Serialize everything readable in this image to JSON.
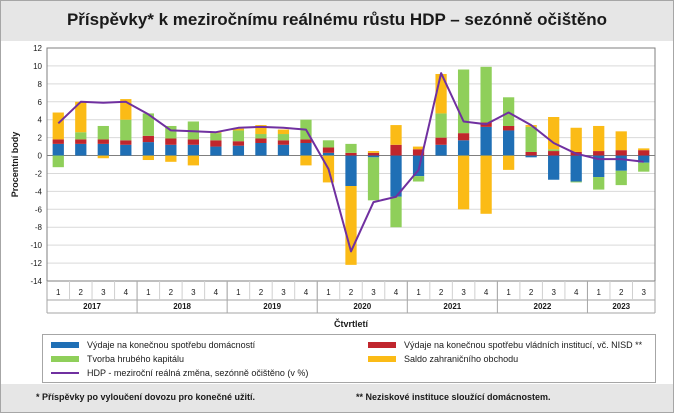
{
  "title": "Příspěvky* k meziročnímu reálnému růstu HDP – sezónně očištěno",
  "legend": {
    "items": [
      {
        "key": "households",
        "label": "Výdaje na konečnou spotřebu domácností",
        "color": "#1f6fb5"
      },
      {
        "key": "government",
        "label": "Výdaje na konečnou spotřebu vládních institucí, vč. NISD **",
        "color": "#c0262d"
      },
      {
        "key": "capital",
        "label": "Tvorba hrubého kapitálu",
        "color": "#8fcf5a"
      },
      {
        "key": "trade",
        "label": "Saldo zahraničního obchodu",
        "color": "#fbbb16"
      },
      {
        "key": "gdp",
        "label": "HDP - meziroční reálná změna, sezónně očištěno (v %)",
        "color": "#7030a0"
      }
    ]
  },
  "footnotes": {
    "left": "* Příspěvky po vyloučení dovozu pro konečné užití.",
    "right": "** Neziskové instituce sloužící domácnostem."
  },
  "chart_data": {
    "type": "bar",
    "stacked": true,
    "ylabel": "Procentní body",
    "xlabel": "Čtvrtletí",
    "ylim": [
      -14,
      12
    ],
    "yticks": [
      -14,
      -12,
      -10,
      -8,
      -6,
      -4,
      -2,
      0,
      2,
      4,
      6,
      8,
      10,
      12
    ],
    "grid": true,
    "categories": [
      "1",
      "2",
      "3",
      "4",
      "1",
      "2",
      "3",
      "4",
      "1",
      "2",
      "3",
      "4",
      "1",
      "2",
      "3",
      "4",
      "1",
      "2",
      "3",
      "4",
      "1",
      "2",
      "3",
      "4",
      "1",
      "2",
      "3"
    ],
    "years": [
      {
        "label": "2017",
        "count": 4
      },
      {
        "label": "2018",
        "count": 4
      },
      {
        "label": "2019",
        "count": 4
      },
      {
        "label": "2020",
        "count": 4
      },
      {
        "label": "2021",
        "count": 4
      },
      {
        "label": "2022",
        "count": 4
      },
      {
        "label": "2023",
        "count": 3
      }
    ],
    "series": [
      {
        "key": "households",
        "name": "Výdaje na konečnou spotřebu domácností",
        "values": [
          1.3,
          1.3,
          1.3,
          1.2,
          1.5,
          1.2,
          1.2,
          1.0,
          1.1,
          1.4,
          1.2,
          1.4,
          0.3,
          -3.4,
          -0.2,
          -4.6,
          -2.3,
          1.2,
          1.7,
          3.2,
          2.8,
          -0.2,
          -2.7,
          -2.9,
          -2.4,
          -1.7,
          -0.8
        ]
      },
      {
        "key": "government",
        "name": "Výdaje na konečnou spotřebu vládních institucí, vč. NISD **",
        "values": [
          0.5,
          0.5,
          0.5,
          0.5,
          0.7,
          0.7,
          0.6,
          0.7,
          0.5,
          0.5,
          0.5,
          0.4,
          0.6,
          0.3,
          0.3,
          1.2,
          0.7,
          0.8,
          0.8,
          0.5,
          0.5,
          0.4,
          0.5,
          0.4,
          0.5,
          0.6,
          0.6
        ]
      },
      {
        "key": "capital",
        "name": "Tvorba hrubého kapitálu",
        "values": [
          -1.3,
          0.8,
          1.5,
          2.3,
          2.5,
          1.4,
          2.0,
          0.8,
          1.2,
          0.5,
          0.7,
          2.2,
          0.8,
          1.0,
          -4.8,
          -3.4,
          -0.6,
          2.7,
          7.1,
          6.2,
          3.2,
          2.8,
          0.2,
          -0.1,
          -1.4,
          -1.6,
          -1.0
        ]
      },
      {
        "key": "trade",
        "name": "Saldo zahraničního obchodu",
        "values": [
          3.0,
          3.4,
          -0.3,
          2.3,
          -0.5,
          -0.7,
          -1.1,
          0.1,
          0.2,
          1.0,
          0.5,
          -1.1,
          -3.0,
          -8.8,
          0.2,
          2.2,
          0.3,
          4.4,
          -6.0,
          -6.5,
          -1.6,
          0.2,
          3.6,
          2.7,
          2.8,
          2.1,
          0.2
        ]
      }
    ],
    "line": {
      "key": "gdp",
      "name": "HDP - meziroční reálná změna, sezónně očištěno (v %)",
      "values": [
        3.6,
        6.0,
        5.9,
        6.0,
        4.6,
        2.8,
        2.7,
        2.6,
        3.1,
        3.2,
        3.1,
        2.9,
        -1.5,
        -10.7,
        -5.2,
        -4.6,
        -1.6,
        9.2,
        3.8,
        3.5,
        4.8,
        3.4,
        1.4,
        0.2,
        -0.4,
        -0.4,
        -0.7
      ]
    }
  }
}
